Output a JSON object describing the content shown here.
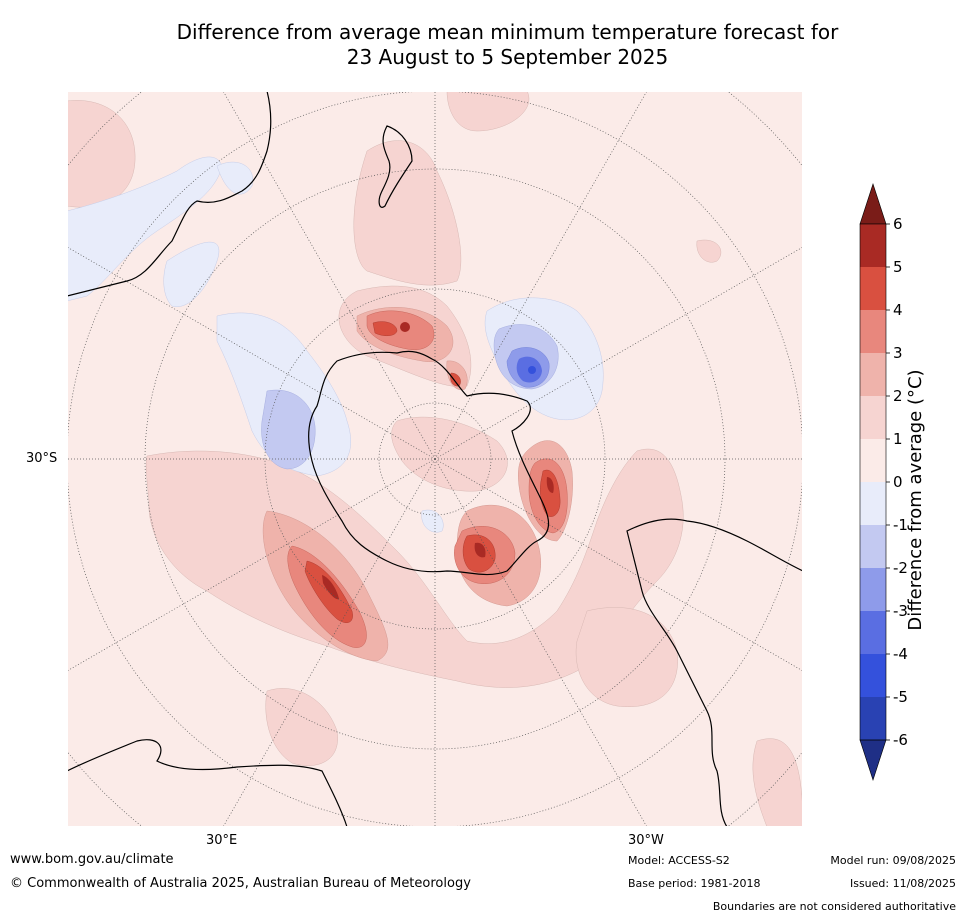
{
  "title_line1": "Difference from average mean minimum temperature forecast for",
  "title_line2": "23 August to 5 September 2025",
  "map": {
    "projection": "south-polar stereographic",
    "lat_label": "30°S",
    "lon_labels": {
      "east": "30°E",
      "west": "30°W"
    },
    "regions": [
      "Australia",
      "New Zealand",
      "Antarctica",
      "South America",
      "Africa"
    ]
  },
  "colorbar": {
    "label": "Difference from average (°C)",
    "ticks": [
      "6",
      "5",
      "4",
      "3",
      "2",
      "1",
      "0",
      "-1",
      "-2",
      "-3",
      "-4",
      "-5",
      "-6"
    ],
    "colors_top_to_bottom": [
      "#7a1c18",
      "#a92a24",
      "#d95040",
      "#e8877d",
      "#efb3ab",
      "#f6d4d1",
      "#fbebe8",
      "#e8ecfa",
      "#c3c9f1",
      "#8e9bea",
      "#5a6ee2",
      "#3451dc",
      "#2942b3",
      "#1f2f86"
    ],
    "extend": "both"
  },
  "footer": {
    "website": "www.bom.gov.au/climate",
    "copyright": "© Commonwealth of Australia 2025, Australian Bureau of Meteorology",
    "model": "Model: ACCESS-S2",
    "base_period": "Base period: 1981-2018",
    "model_run": "Model run: 09/08/2025",
    "issued": "Issued: 11/08/2025",
    "disclaimer": "Boundaries are not considered authoritative"
  }
}
